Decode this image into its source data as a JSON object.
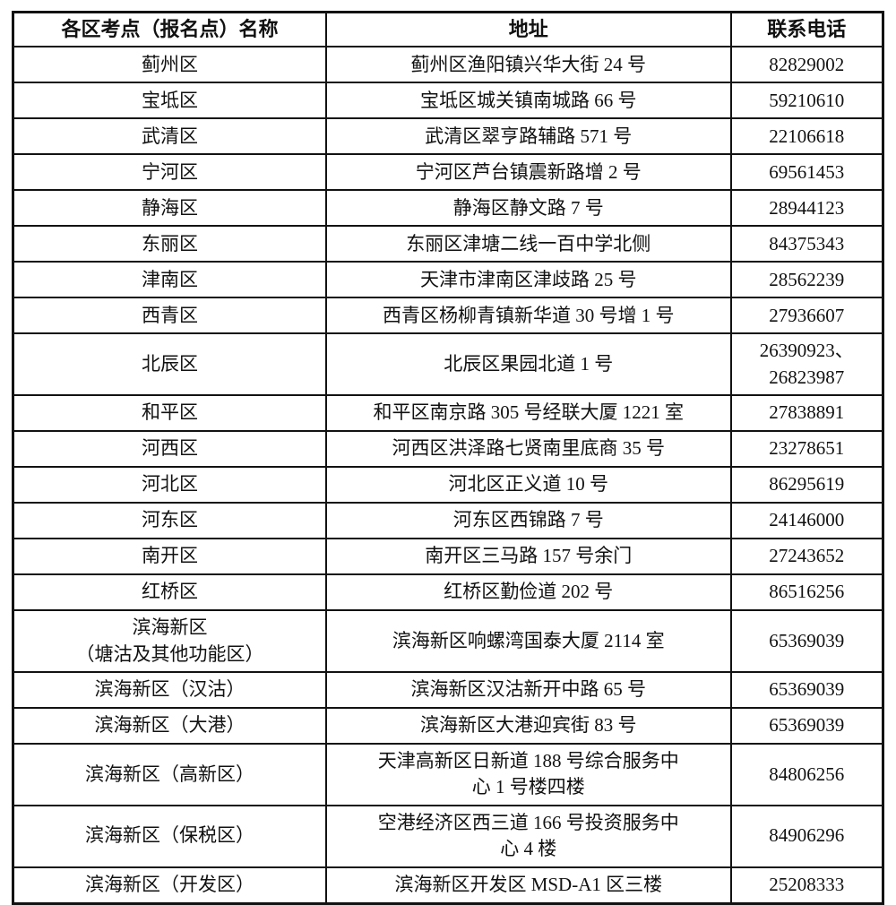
{
  "table": {
    "headers": [
      "各区考点（报名点）名称",
      "地址",
      "联系电话"
    ],
    "rows": [
      {
        "name": "蓟州区",
        "address": "蓟州区渔阳镇兴华大街 24 号",
        "phone": "82829002"
      },
      {
        "name": "宝坻区",
        "address": "宝坻区城关镇南城路 66 号",
        "phone": "59210610"
      },
      {
        "name": "武清区",
        "address": "武清区翠亨路辅路 571 号",
        "phone": "22106618"
      },
      {
        "name": "宁河区",
        "address": "宁河区芦台镇震新路增 2 号",
        "phone": "69561453"
      },
      {
        "name": "静海区",
        "address": "静海区静文路 7 号",
        "phone": "28944123"
      },
      {
        "name": "东丽区",
        "address": "东丽区津塘二线一百中学北侧",
        "phone": "84375343"
      },
      {
        "name": "津南区",
        "address": "天津市津南区津歧路 25 号",
        "phone": "28562239"
      },
      {
        "name": "西青区",
        "address": "西青区杨柳青镇新华道 30 号增 1 号",
        "phone": "27936607"
      },
      {
        "name": "北辰区",
        "address": "北辰区果园北道 1 号",
        "phone": "26390923、\n26823987"
      },
      {
        "name": "和平区",
        "address": "和平区南京路 305 号经联大厦 1221 室",
        "phone": "27838891"
      },
      {
        "name": "河西区",
        "address": "河西区洪泽路七贤南里底商 35 号",
        "phone": "23278651"
      },
      {
        "name": "河北区",
        "address": "河北区正义道 10 号",
        "phone": "86295619"
      },
      {
        "name": "河东区",
        "address": "河东区西锦路 7 号",
        "phone": "24146000"
      },
      {
        "name": "南开区",
        "address": "南开区三马路 157 号余门",
        "phone": "27243652"
      },
      {
        "name": "红桥区",
        "address": "红桥区勤俭道 202 号",
        "phone": "86516256"
      },
      {
        "name": "滨海新区\n（塘沽及其他功能区）",
        "address": "滨海新区响螺湾国泰大厦 2114 室",
        "phone": "65369039"
      },
      {
        "name": "滨海新区（汉沽）",
        "address": "滨海新区汉沽新开中路 65 号",
        "phone": "65369039"
      },
      {
        "name": "滨海新区（大港）",
        "address": "滨海新区大港迎宾街 83 号",
        "phone": "65369039"
      },
      {
        "name": "滨海新区（高新区）",
        "address": "天津高新区日新道 188 号综合服务中\n心 1 号楼四楼",
        "phone": "84806256"
      },
      {
        "name": "滨海新区（保税区）",
        "address": "空港经济区西三道 166 号投资服务中\n心 4 楼",
        "phone": "84906296"
      },
      {
        "name": "滨海新区（开发区）",
        "address": "滨海新区开发区 MSD-A1 区三楼",
        "phone": "25208333"
      }
    ]
  }
}
